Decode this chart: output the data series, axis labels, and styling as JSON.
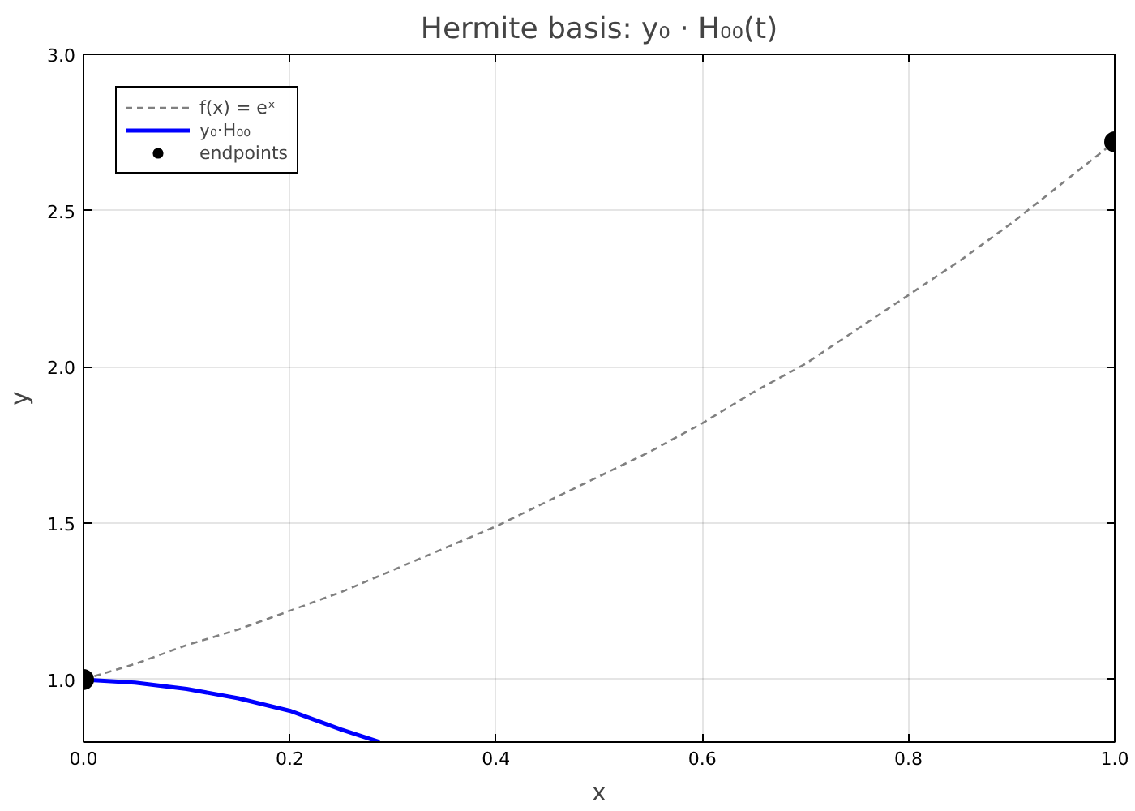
{
  "chart_data": {
    "type": "line",
    "title": "Hermite basis: y₀ · H₀₀(t)",
    "xlabel": "x",
    "ylabel": "y",
    "xlim": [
      0,
      1
    ],
    "ylim": [
      0.8,
      3.0
    ],
    "xticks": [
      {
        "value": 0,
        "label": "0.0"
      },
      0.2,
      0.4,
      0.6,
      0.8,
      {
        "value": 1,
        "label": "1.0"
      }
    ],
    "yticks": [
      {
        "value": 1,
        "label": "1.0"
      },
      1.5,
      {
        "value": 2,
        "label": "2.0"
      },
      2.5,
      {
        "value": 3,
        "label": "3.0"
      }
    ],
    "grid": true,
    "legend": "top left",
    "series": [
      {
        "name": "f(x) = eˣ",
        "color": "#808080",
        "line_style": "dashed",
        "x": [
          0,
          0.05,
          0.1,
          0.15,
          0.2,
          0.25,
          0.3,
          0.35,
          0.4,
          0.45,
          0.5,
          0.55,
          0.6,
          0.65,
          0.7,
          0.75,
          0.8,
          0.85,
          0.9,
          0.95,
          1
        ],
        "values": [
          1.0,
          1.05,
          1.11,
          1.16,
          1.22,
          1.28,
          1.35,
          1.42,
          1.49,
          1.57,
          1.65,
          1.73,
          1.82,
          1.92,
          2.01,
          2.12,
          2.23,
          2.34,
          2.46,
          2.59,
          2.72
        ]
      },
      {
        "name": "y₀·H₀₀",
        "color": "#0000ff",
        "line_style": "solid",
        "x": [
          0,
          0.05,
          0.1,
          0.15,
          0.2,
          0.25,
          0.287
        ],
        "values": [
          1.0,
          0.99,
          0.97,
          0.94,
          0.9,
          0.84,
          0.8
        ]
      },
      {
        "name": "endpoints",
        "type": "scatter",
        "marker": "circle",
        "color": "#000000",
        "x": [
          0,
          1
        ],
        "values": [
          1.0,
          2.72
        ]
      }
    ]
  }
}
